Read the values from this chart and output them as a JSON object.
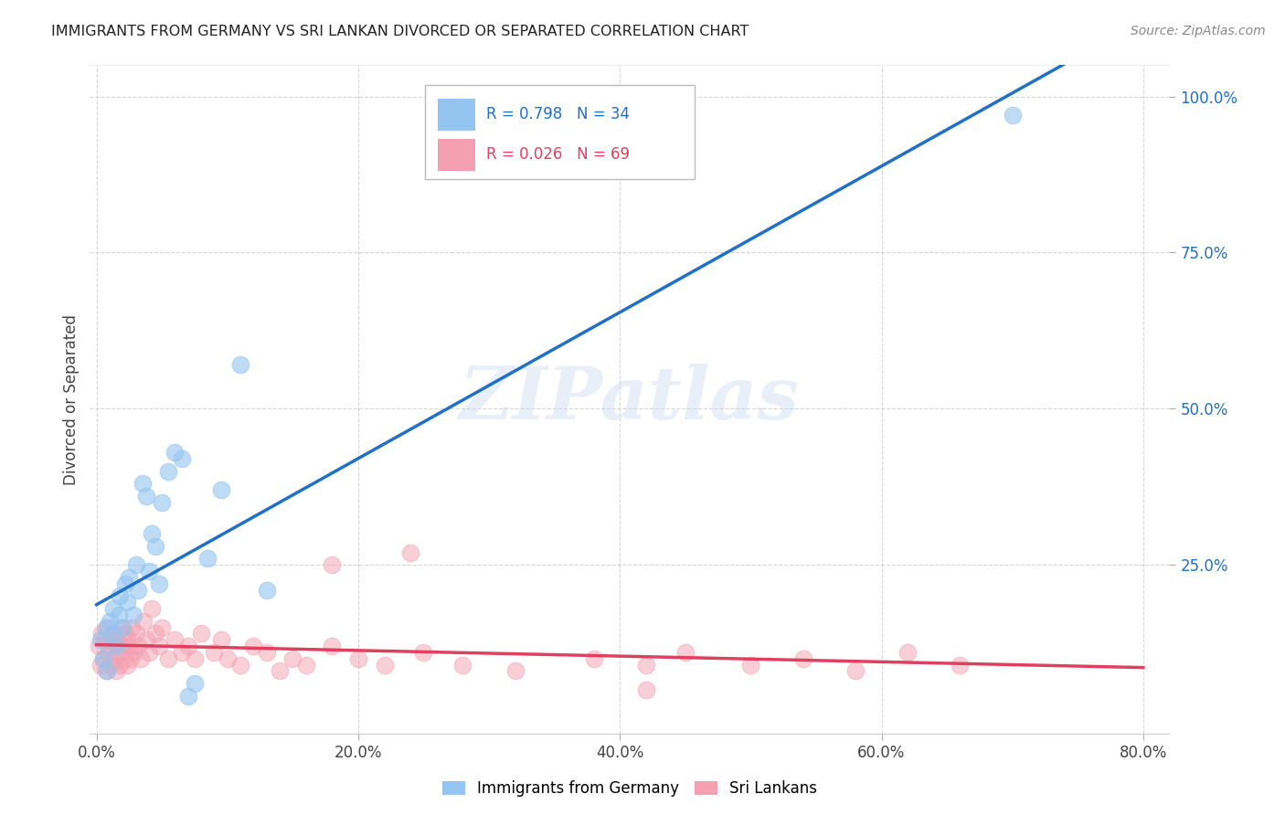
{
  "title": "IMMIGRANTS FROM GERMANY VS SRI LANKAN DIVORCED OR SEPARATED CORRELATION CHART",
  "source": "Source: ZipAtlas.com",
  "xlim": [
    -0.005,
    0.82
  ],
  "ylim": [
    -0.02,
    1.05
  ],
  "ylabel": "Divorced or Separated",
  "legend_label1": "Immigrants from Germany",
  "legend_label2": "Sri Lankans",
  "r1": "0.798",
  "n1": "34",
  "r2": "0.026",
  "n2": "69",
  "color_blue": "#94c4f0",
  "color_pink": "#f4a0b0",
  "line_blue": "#2070c8",
  "line_pink": "#e04060",
  "watermark": "ZIPatlas",
  "germany_x": [
    0.003,
    0.005,
    0.007,
    0.008,
    0.01,
    0.012,
    0.013,
    0.015,
    0.017,
    0.018,
    0.02,
    0.022,
    0.023,
    0.025,
    0.028,
    0.03,
    0.032,
    0.035,
    0.038,
    0.04,
    0.042,
    0.045,
    0.048,
    0.05,
    0.055,
    0.06,
    0.065,
    0.07,
    0.075,
    0.085,
    0.095,
    0.11,
    0.13,
    0.7
  ],
  "germany_y": [
    0.13,
    0.1,
    0.15,
    0.08,
    0.16,
    0.14,
    0.18,
    0.12,
    0.17,
    0.2,
    0.15,
    0.22,
    0.19,
    0.23,
    0.17,
    0.25,
    0.21,
    0.38,
    0.36,
    0.24,
    0.3,
    0.28,
    0.22,
    0.35,
    0.4,
    0.43,
    0.42,
    0.04,
    0.06,
    0.26,
    0.37,
    0.57,
    0.21,
    0.97
  ],
  "srilanka_x": [
    0.002,
    0.003,
    0.004,
    0.005,
    0.006,
    0.007,
    0.008,
    0.009,
    0.01,
    0.011,
    0.012,
    0.013,
    0.014,
    0.015,
    0.016,
    0.017,
    0.018,
    0.019,
    0.02,
    0.021,
    0.022,
    0.023,
    0.024,
    0.025,
    0.026,
    0.027,
    0.028,
    0.03,
    0.032,
    0.034,
    0.036,
    0.038,
    0.04,
    0.042,
    0.045,
    0.048,
    0.05,
    0.055,
    0.06,
    0.065,
    0.07,
    0.075,
    0.08,
    0.09,
    0.095,
    0.1,
    0.11,
    0.12,
    0.13,
    0.14,
    0.15,
    0.16,
    0.18,
    0.2,
    0.22,
    0.25,
    0.28,
    0.32,
    0.38,
    0.42,
    0.45,
    0.5,
    0.54,
    0.58,
    0.62,
    0.66,
    0.18,
    0.24,
    0.42
  ],
  "srilanka_y": [
    0.12,
    0.09,
    0.14,
    0.1,
    0.13,
    0.08,
    0.15,
    0.11,
    0.13,
    0.09,
    0.12,
    0.1,
    0.14,
    0.08,
    0.13,
    0.11,
    0.09,
    0.15,
    0.12,
    0.1,
    0.14,
    0.09,
    0.13,
    0.12,
    0.1,
    0.15,
    0.11,
    0.14,
    0.12,
    0.1,
    0.16,
    0.13,
    0.11,
    0.18,
    0.14,
    0.12,
    0.15,
    0.1,
    0.13,
    0.11,
    0.12,
    0.1,
    0.14,
    0.11,
    0.13,
    0.1,
    0.09,
    0.12,
    0.11,
    0.08,
    0.1,
    0.09,
    0.12,
    0.1,
    0.09,
    0.11,
    0.09,
    0.08,
    0.1,
    0.09,
    0.11,
    0.09,
    0.1,
    0.08,
    0.11,
    0.09,
    0.25,
    0.27,
    0.05
  ],
  "x_tick_positions": [
    0.0,
    0.2,
    0.4,
    0.6,
    0.8
  ],
  "x_tick_labels": [
    "0.0%",
    "20.0%",
    "40.0%",
    "60.0%",
    "80.0%"
  ],
  "y_tick_positions": [
    0.25,
    0.5,
    0.75,
    1.0
  ],
  "y_tick_labels": [
    "25.0%",
    "50.0%",
    "75.0%",
    "100.0%"
  ]
}
